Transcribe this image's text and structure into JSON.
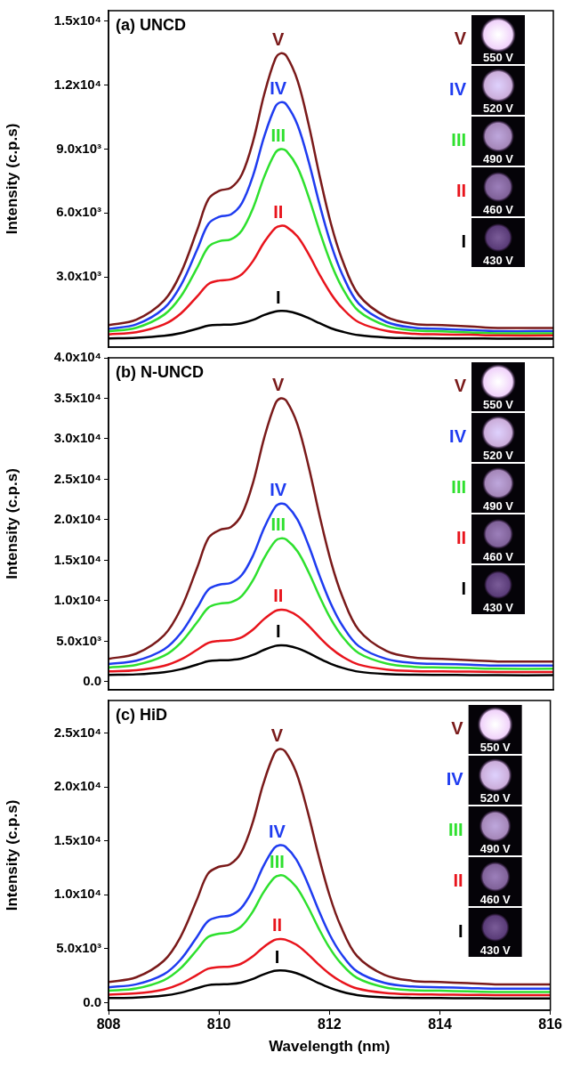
{
  "chart_data": [
    {
      "type": "line",
      "title": "(a) UNCD",
      "y_label": "Intensity (c.p.s)",
      "x": [
        808,
        808.5,
        809,
        809.3,
        809.6,
        809.8,
        810,
        810.2,
        810.4,
        810.6,
        810.8,
        811,
        811.1,
        811.2,
        811.4,
        811.6,
        811.8,
        812,
        812.2,
        812.5,
        813,
        813.5,
        814,
        814.5,
        815,
        816
      ],
      "xlim": [
        808,
        816
      ],
      "xticks": [
        808,
        810,
        812,
        814,
        816
      ],
      "ylim": [
        -300,
        15500
      ],
      "yticks": [
        {
          "value": 3000,
          "label": "3.0x10³"
        },
        {
          "value": 6000,
          "label": "6.0x10³"
        },
        {
          "value": 9000,
          "label": "9.0x10³"
        },
        {
          "value": 12000,
          "label": "1.2x10⁴"
        },
        {
          "value": 15000,
          "label": "1.5x10⁴"
        }
      ],
      "grid": false,
      "tick_labels": "y",
      "series": [
        {
          "name": "I",
          "color": "#000000",
          "annotation": "430 V",
          "values": [
            110,
            140,
            230,
            360,
            570,
            710,
            750,
            760,
            830,
            980,
            1210,
            1370,
            1400,
            1390,
            1270,
            1060,
            820,
            590,
            430,
            260,
            150,
            120,
            110,
            110,
            100,
            100
          ]
        },
        {
          "name": "II",
          "color": "#e8141c",
          "annotation": "460 V",
          "values": [
            300,
            400,
            770,
            1280,
            2100,
            2670,
            2830,
            2880,
            3130,
            3750,
            4630,
            5300,
            5400,
            5350,
            4890,
            4060,
            3080,
            2210,
            1540,
            870,
            460,
            330,
            300,
            280,
            250,
            250
          ]
        },
        {
          "name": "III",
          "color": "#2ee02e",
          "annotation": "490 V",
          "values": [
            440,
            610,
            1220,
            2080,
            3460,
            4420,
            4680,
            4760,
            5190,
            6230,
            7700,
            8830,
            9000,
            8910,
            8140,
            6750,
            5110,
            3640,
            2510,
            1390,
            700,
            480,
            440,
            390,
            350,
            350
          ]
        },
        {
          "name": "IV",
          "color": "#1f3cf0",
          "annotation": "520 V",
          "values": [
            560,
            770,
            1530,
            2600,
            4320,
            5500,
            5830,
            5930,
            6470,
            7760,
            9590,
            10990,
            11200,
            11090,
            10130,
            8410,
            6360,
            4540,
            3140,
            1740,
            880,
            610,
            560,
            500,
            450,
            450
          ]
        },
        {
          "name": "V",
          "color": "#7a1a1a",
          "annotation": "550 V",
          "values": [
            730,
            990,
            1890,
            3180,
            5240,
            6660,
            7050,
            7180,
            7820,
            9370,
            11570,
            13240,
            13500,
            13370,
            12210,
            10150,
            7700,
            5500,
            3830,
            2150,
            1120,
            790,
            730,
            670,
            600,
            600
          ]
        }
      ]
    },
    {
      "type": "line",
      "title": "(b) N-UNCD",
      "y_label": "Intensity (c.p.s)",
      "x": [
        808,
        808.5,
        809,
        809.3,
        809.6,
        809.8,
        810,
        810.2,
        810.4,
        810.6,
        810.8,
        811,
        811.1,
        811.2,
        811.4,
        811.6,
        811.8,
        812,
        812.2,
        812.5,
        813,
        813.5,
        814,
        814.5,
        815,
        816
      ],
      "xlim": [
        808,
        816
      ],
      "xticks": [
        808,
        810,
        812,
        814,
        816
      ],
      "ylim": [
        -1000,
        40000
      ],
      "yticks": [
        {
          "value": 0,
          "label": "0.0"
        },
        {
          "value": 5000,
          "label": "5.0x10³"
        },
        {
          "value": 10000,
          "label": "1.0x10⁴"
        },
        {
          "value": 15000,
          "label": "1.5x10⁴"
        },
        {
          "value": 20000,
          "label": "2.0x10⁴"
        },
        {
          "value": 25000,
          "label": "2.5x10⁴"
        },
        {
          "value": 30000,
          "label": "3.0x10⁴"
        },
        {
          "value": 35000,
          "label": "3.5x10⁴"
        },
        {
          "value": 40000,
          "label": "4.0x10⁴"
        }
      ],
      "grid": false,
      "tick_labels": "y",
      "series": [
        {
          "name": "I",
          "color": "#000000",
          "annotation": "430 V",
          "values": [
            840,
            910,
            1170,
            1540,
            2130,
            2540,
            2650,
            2690,
            2870,
            3320,
            3950,
            4430,
            4500,
            4460,
            4130,
            3540,
            2840,
            2210,
            1730,
            1240,
            950,
            860,
            840,
            820,
            800,
            800
          ]
        },
        {
          "name": "II",
          "color": "#e8141c",
          "annotation": "460 V",
          "values": [
            1280,
            1430,
            1970,
            2740,
            3970,
            4820,
            5050,
            5130,
            5510,
            6440,
            7750,
            8750,
            8900,
            8820,
            8130,
            6900,
            5440,
            4130,
            3130,
            2120,
            1510,
            1320,
            1280,
            1240,
            1200,
            1200
          ]
        },
        {
          "name": "III",
          "color": "#2ee02e",
          "annotation": "490 V",
          "values": [
            1760,
            2080,
            3210,
            4820,
            7400,
            9170,
            9650,
            9810,
            10620,
            12550,
            15290,
            17380,
            17700,
            17540,
            16090,
            13510,
            10460,
            7720,
            5630,
            3530,
            2240,
            1840,
            1760,
            1680,
            1600,
            1600
          ]
        },
        {
          "name": "IV",
          "color": "#1f3cf0",
          "annotation": "520 V",
          "values": [
            2200,
            2600,
            4000,
            6000,
            9200,
            11400,
            12000,
            12200,
            13200,
            15600,
            19000,
            21600,
            22000,
            21800,
            20000,
            16800,
            13000,
            9600,
            7000,
            4400,
            2800,
            2300,
            2200,
            2100,
            2000,
            2000
          ]
        },
        {
          "name": "V",
          "color": "#7a1a1a",
          "annotation": "550 V",
          "values": [
            2830,
            3480,
            5750,
            9000,
            14200,
            17780,
            18750,
            19080,
            20700,
            24600,
            30130,
            34350,
            35000,
            34680,
            31750,
            26550,
            20380,
            14850,
            10630,
            6400,
            3800,
            2990,
            2830,
            2660,
            2500,
            2500
          ]
        }
      ]
    },
    {
      "type": "line",
      "title": "(c) HiD",
      "y_label": "Intensity (c.p.s)",
      "x_label": "Wavelength (nm)",
      "x": [
        808,
        808.5,
        809,
        809.3,
        809.6,
        809.8,
        810,
        810.2,
        810.4,
        810.6,
        810.8,
        811,
        811.1,
        811.2,
        811.4,
        811.6,
        811.8,
        812,
        812.2,
        812.5,
        813,
        813.5,
        814,
        814.5,
        815,
        816
      ],
      "xlim": [
        808,
        816
      ],
      "xticks": [
        808,
        810,
        812,
        814,
        816
      ],
      "ylim": [
        -700,
        28000
      ],
      "yticks": [
        {
          "value": 0,
          "label": "0.0"
        },
        {
          "value": 5000,
          "label": "5.0x10³"
        },
        {
          "value": 10000,
          "label": "1.0x10⁴"
        },
        {
          "value": 15000,
          "label": "1.5x10⁴"
        },
        {
          "value": 20000,
          "label": "2.0x10⁴"
        },
        {
          "value": 25000,
          "label": "2.5x10⁴"
        }
      ],
      "grid": false,
      "series": [
        {
          "name": "I",
          "color": "#000000",
          "annotation": "430 V",
          "values": [
            430,
            480,
            660,
            920,
            1340,
            1620,
            1700,
            1730,
            1860,
            2170,
            2610,
            2950,
            3000,
            2970,
            2740,
            2320,
            1830,
            1390,
            1050,
            710,
            500,
            440,
            430,
            410,
            400,
            400
          ]
        },
        {
          "name": "II",
          "color": "#e8141c",
          "annotation": "460 V",
          "values": [
            750,
            860,
            1220,
            1740,
            2570,
            3140,
            3300,
            3350,
            3610,
            4240,
            5120,
            5800,
            5900,
            5850,
            5380,
            4550,
            3560,
            2680,
            2000,
            1320,
            910,
            780,
            750,
            730,
            700,
            700
          ]
        },
        {
          "name": "III",
          "color": "#2ee02e",
          "annotation": "490 V",
          "values": [
            1110,
            1320,
            2080,
            3160,
            4890,
            6080,
            6400,
            6510,
            7050,
            8340,
            10180,
            11580,
            11800,
            11690,
            10720,
            8990,
            6940,
            5100,
            3700,
            2300,
            1430,
            1160,
            1110,
            1050,
            1000,
            1000
          ]
        },
        {
          "name": "IV",
          "color": "#1f3cf0",
          "annotation": "520 V",
          "values": [
            1430,
            1700,
            2630,
            3960,
            6090,
            7550,
            7950,
            8080,
            8750,
            10340,
            12610,
            14330,
            14600,
            14470,
            13270,
            11140,
            8620,
            6350,
            4630,
            2900,
            1830,
            1500,
            1430,
            1370,
            1300,
            1300
          ]
        },
        {
          "name": "V",
          "color": "#7a1a1a",
          "annotation": "550 V",
          "values": [
            1920,
            2350,
            3880,
            6060,
            9550,
            11950,
            12600,
            12820,
            13910,
            16520,
            20230,
            23060,
            23500,
            23280,
            21320,
            17830,
            13690,
            9980,
            7150,
            4320,
            2570,
            2030,
            1920,
            1810,
            1700,
            1700
          ]
        }
      ]
    }
  ]
}
